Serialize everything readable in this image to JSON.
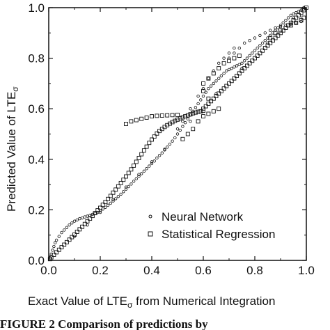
{
  "chart_data": {
    "type": "scatter",
    "title": "",
    "xlabel": "Exact Value of LTE",
    "xlabel_subscript": "σ",
    "xlabel_suffix": " from Numerical Integration",
    "ylabel": "Predicted Value of LTE",
    "ylabel_subscript": "σ",
    "xlim": [
      0,
      1
    ],
    "ylim": [
      0,
      1
    ],
    "x_ticks": [
      "0.0",
      "0.2",
      "0.4",
      "0.6",
      "0.8",
      "1.0"
    ],
    "y_ticks": [
      "0.0",
      "0.2",
      "0.4",
      "0.6",
      "0.8",
      "1.0"
    ],
    "grid": false,
    "legend": "bottom-right",
    "series": [
      {
        "name": "Neural Network",
        "marker": "small-open-circle",
        "points": [
          [
            0.005,
            0.01
          ],
          [
            0.01,
            0.025
          ],
          [
            0.015,
            0.04
          ],
          [
            0.02,
            0.055
          ],
          [
            0.025,
            0.07
          ],
          [
            0.03,
            0.08
          ],
          [
            0.04,
            0.095
          ],
          [
            0.05,
            0.11
          ],
          [
            0.06,
            0.12
          ],
          [
            0.07,
            0.13
          ],
          [
            0.08,
            0.14
          ],
          [
            0.09,
            0.148
          ],
          [
            0.1,
            0.155
          ],
          [
            0.11,
            0.16
          ],
          [
            0.12,
            0.165
          ],
          [
            0.13,
            0.168
          ],
          [
            0.14,
            0.172
          ],
          [
            0.15,
            0.175
          ],
          [
            0.16,
            0.178
          ],
          [
            0.17,
            0.182
          ],
          [
            0.18,
            0.186
          ],
          [
            0.19,
            0.19
          ],
          [
            0.2,
            0.196
          ],
          [
            0.21,
            0.203
          ],
          [
            0.22,
            0.21
          ],
          [
            0.23,
            0.218
          ],
          [
            0.24,
            0.226
          ],
          [
            0.25,
            0.235
          ],
          [
            0.26,
            0.244
          ],
          [
            0.27,
            0.253
          ],
          [
            0.28,
            0.262
          ],
          [
            0.29,
            0.272
          ],
          [
            0.3,
            0.282
          ],
          [
            0.31,
            0.292
          ],
          [
            0.32,
            0.302
          ],
          [
            0.33,
            0.313
          ],
          [
            0.34,
            0.323
          ],
          [
            0.35,
            0.333
          ],
          [
            0.36,
            0.343
          ],
          [
            0.37,
            0.353
          ],
          [
            0.38,
            0.363
          ],
          [
            0.39,
            0.373
          ],
          [
            0.4,
            0.383
          ],
          [
            0.41,
            0.393
          ],
          [
            0.42,
            0.405
          ],
          [
            0.43,
            0.415
          ],
          [
            0.44,
            0.425
          ],
          [
            0.45,
            0.437
          ],
          [
            0.46,
            0.448
          ],
          [
            0.47,
            0.46
          ],
          [
            0.48,
            0.472
          ],
          [
            0.49,
            0.485
          ],
          [
            0.5,
            0.5
          ],
          [
            0.51,
            0.515
          ],
          [
            0.52,
            0.53
          ],
          [
            0.53,
            0.545
          ],
          [
            0.54,
            0.56
          ],
          [
            0.55,
            0.575
          ],
          [
            0.56,
            0.59
          ],
          [
            0.57,
            0.605
          ],
          [
            0.58,
            0.62
          ],
          [
            0.59,
            0.635
          ],
          [
            0.6,
            0.65
          ],
          [
            0.61,
            0.665
          ],
          [
            0.62,
            0.68
          ],
          [
            0.63,
            0.69
          ],
          [
            0.64,
            0.7
          ],
          [
            0.65,
            0.71
          ],
          [
            0.66,
            0.72
          ],
          [
            0.67,
            0.73
          ],
          [
            0.68,
            0.74
          ],
          [
            0.69,
            0.75
          ],
          [
            0.7,
            0.755
          ],
          [
            0.71,
            0.76
          ],
          [
            0.72,
            0.765
          ],
          [
            0.73,
            0.77
          ],
          [
            0.74,
            0.775
          ],
          [
            0.75,
            0.78
          ],
          [
            0.76,
            0.79
          ],
          [
            0.77,
            0.8
          ],
          [
            0.78,
            0.81
          ],
          [
            0.79,
            0.82
          ],
          [
            0.8,
            0.83
          ],
          [
            0.81,
            0.84
          ],
          [
            0.82,
            0.85
          ],
          [
            0.83,
            0.86
          ],
          [
            0.84,
            0.87
          ],
          [
            0.85,
            0.88
          ],
          [
            0.86,
            0.89
          ],
          [
            0.87,
            0.9
          ],
          [
            0.88,
            0.91
          ],
          [
            0.89,
            0.92
          ],
          [
            0.9,
            0.93
          ],
          [
            0.91,
            0.94
          ],
          [
            0.92,
            0.95
          ],
          [
            0.93,
            0.96
          ],
          [
            0.94,
            0.97
          ],
          [
            0.95,
            0.975
          ],
          [
            0.96,
            0.98
          ],
          [
            0.97,
            0.985
          ],
          [
            0.98,
            0.99
          ],
          [
            0.99,
            0.995
          ],
          [
            0.5,
            0.52
          ],
          [
            0.52,
            0.55
          ],
          [
            0.55,
            0.6
          ],
          [
            0.58,
            0.65
          ],
          [
            0.6,
            0.68
          ],
          [
            0.62,
            0.72
          ],
          [
            0.64,
            0.75
          ],
          [
            0.66,
            0.78
          ],
          [
            0.68,
            0.8
          ],
          [
            0.7,
            0.82
          ],
          [
            0.72,
            0.84
          ],
          [
            0.7,
            0.8
          ],
          [
            0.72,
            0.82
          ],
          [
            0.74,
            0.84
          ],
          [
            0.76,
            0.86
          ],
          [
            0.78,
            0.87
          ],
          [
            0.8,
            0.88
          ],
          [
            0.82,
            0.89
          ],
          [
            0.84,
            0.9
          ],
          [
            0.86,
            0.91
          ],
          [
            0.88,
            0.92
          ],
          [
            0.9,
            0.925
          ],
          [
            0.92,
            0.93
          ],
          [
            0.94,
            0.935
          ],
          [
            0.96,
            0.94
          ],
          [
            0.98,
            0.945
          ],
          [
            0.1,
            0.095
          ],
          [
            0.15,
            0.14
          ],
          [
            0.2,
            0.19
          ],
          [
            0.25,
            0.24
          ],
          [
            0.3,
            0.29
          ],
          [
            0.35,
            0.34
          ],
          [
            0.4,
            0.39
          ],
          [
            0.45,
            0.44
          ],
          [
            0.55,
            0.55
          ],
          [
            0.65,
            0.66
          ],
          [
            0.75,
            0.76
          ],
          [
            0.85,
            0.86
          ],
          [
            0.95,
            0.96
          ],
          [
            0.99,
            1.0
          ]
        ]
      },
      {
        "name": "Statistical Regression",
        "marker": "open-square",
        "points": [
          [
            0.005,
            0.005
          ],
          [
            0.01,
            0.012
          ],
          [
            0.02,
            0.022
          ],
          [
            0.03,
            0.032
          ],
          [
            0.04,
            0.042
          ],
          [
            0.05,
            0.052
          ],
          [
            0.06,
            0.062
          ],
          [
            0.07,
            0.072
          ],
          [
            0.08,
            0.082
          ],
          [
            0.09,
            0.092
          ],
          [
            0.1,
            0.102
          ],
          [
            0.11,
            0.113
          ],
          [
            0.12,
            0.123
          ],
          [
            0.13,
            0.133
          ],
          [
            0.14,
            0.144
          ],
          [
            0.15,
            0.155
          ],
          [
            0.16,
            0.165
          ],
          [
            0.17,
            0.176
          ],
          [
            0.18,
            0.187
          ],
          [
            0.19,
            0.198
          ],
          [
            0.2,
            0.208
          ],
          [
            0.21,
            0.22
          ],
          [
            0.22,
            0.231
          ],
          [
            0.23,
            0.243
          ],
          [
            0.24,
            0.255
          ],
          [
            0.25,
            0.268
          ],
          [
            0.26,
            0.28
          ],
          [
            0.27,
            0.293
          ],
          [
            0.28,
            0.306
          ],
          [
            0.29,
            0.319
          ],
          [
            0.3,
            0.332
          ],
          [
            0.31,
            0.346
          ],
          [
            0.32,
            0.36
          ],
          [
            0.33,
            0.375
          ],
          [
            0.34,
            0.39
          ],
          [
            0.35,
            0.405
          ],
          [
            0.36,
            0.42
          ],
          [
            0.37,
            0.435
          ],
          [
            0.38,
            0.45
          ],
          [
            0.39,
            0.465
          ],
          [
            0.4,
            0.478
          ],
          [
            0.41,
            0.49
          ],
          [
            0.42,
            0.502
          ],
          [
            0.43,
            0.512
          ],
          [
            0.44,
            0.52
          ],
          [
            0.45,
            0.528
          ],
          [
            0.46,
            0.535
          ],
          [
            0.47,
            0.541
          ],
          [
            0.48,
            0.547
          ],
          [
            0.49,
            0.552
          ],
          [
            0.5,
            0.557
          ],
          [
            0.51,
            0.562
          ],
          [
            0.52,
            0.566
          ],
          [
            0.53,
            0.57
          ],
          [
            0.54,
            0.574
          ],
          [
            0.55,
            0.578
          ],
          [
            0.56,
            0.582
          ],
          [
            0.57,
            0.585
          ],
          [
            0.58,
            0.588
          ],
          [
            0.59,
            0.59
          ],
          [
            0.6,
            0.592
          ],
          [
            0.3,
            0.54
          ],
          [
            0.32,
            0.55
          ],
          [
            0.34,
            0.555
          ],
          [
            0.36,
            0.56
          ],
          [
            0.38,
            0.565
          ],
          [
            0.4,
            0.57
          ],
          [
            0.42,
            0.572
          ],
          [
            0.44,
            0.573
          ],
          [
            0.46,
            0.574
          ],
          [
            0.48,
            0.575
          ],
          [
            0.5,
            0.576
          ],
          [
            0.6,
            0.6
          ],
          [
            0.61,
            0.61
          ],
          [
            0.62,
            0.62
          ],
          [
            0.63,
            0.63
          ],
          [
            0.64,
            0.64
          ],
          [
            0.65,
            0.65
          ],
          [
            0.66,
            0.66
          ],
          [
            0.67,
            0.67
          ],
          [
            0.68,
            0.68
          ],
          [
            0.69,
            0.69
          ],
          [
            0.7,
            0.7
          ],
          [
            0.71,
            0.71
          ],
          [
            0.72,
            0.72
          ],
          [
            0.73,
            0.73
          ],
          [
            0.74,
            0.74
          ],
          [
            0.75,
            0.75
          ],
          [
            0.76,
            0.76
          ],
          [
            0.77,
            0.77
          ],
          [
            0.78,
            0.78
          ],
          [
            0.79,
            0.79
          ],
          [
            0.8,
            0.8
          ],
          [
            0.81,
            0.81
          ],
          [
            0.82,
            0.82
          ],
          [
            0.83,
            0.83
          ],
          [
            0.84,
            0.84
          ],
          [
            0.85,
            0.85
          ],
          [
            0.86,
            0.86
          ],
          [
            0.87,
            0.87
          ],
          [
            0.88,
            0.88
          ],
          [
            0.89,
            0.89
          ],
          [
            0.9,
            0.9
          ],
          [
            0.91,
            0.91
          ],
          [
            0.92,
            0.92
          ],
          [
            0.93,
            0.93
          ],
          [
            0.94,
            0.94
          ],
          [
            0.95,
            0.95
          ],
          [
            0.96,
            0.96
          ],
          [
            0.97,
            0.97
          ],
          [
            0.98,
            0.98
          ],
          [
            0.99,
            0.99
          ],
          [
            1.0,
            1.0
          ],
          [
            0.52,
            0.48
          ],
          [
            0.54,
            0.5
          ],
          [
            0.56,
            0.52
          ],
          [
            0.58,
            0.55
          ],
          [
            0.6,
            0.57
          ],
          [
            0.62,
            0.58
          ],
          [
            0.64,
            0.59
          ],
          [
            0.66,
            0.6
          ],
          [
            0.62,
            0.64
          ],
          [
            0.6,
            0.67
          ],
          [
            0.6,
            0.7
          ],
          [
            0.62,
            0.72
          ],
          [
            0.64,
            0.74
          ],
          [
            0.66,
            0.76
          ],
          [
            0.68,
            0.78
          ],
          [
            0.7,
            0.79
          ],
          [
            0.72,
            0.8
          ],
          [
            0.74,
            0.81
          ],
          [
            0.86,
            0.88
          ],
          [
            0.88,
            0.9
          ],
          [
            0.9,
            0.91
          ],
          [
            0.92,
            0.92
          ],
          [
            0.94,
            0.93
          ],
          [
            0.96,
            0.94
          ],
          [
            0.98,
            0.95
          ],
          [
            0.99,
            0.96
          ]
        ]
      }
    ]
  },
  "caption": "FIGURE 2    Comparison of predictions by"
}
